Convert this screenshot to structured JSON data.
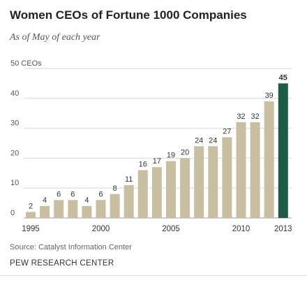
{
  "title": "Women CEOs of Fortune 1000 Companies",
  "subtitle": "As of May of each year",
  "source": "Source: Catalyst Information Center",
  "brand": "PEW RESEARCH CENTER",
  "colors": {
    "bar": "#c8bea1",
    "highlight": "#1e5a46",
    "grid": "#d9d9d9",
    "text": "#333333"
  },
  "chart_data": {
    "type": "bar",
    "x": [
      1995,
      1996,
      1997,
      1998,
      1999,
      2000,
      2001,
      2002,
      2003,
      2004,
      2005,
      2006,
      2007,
      2008,
      2009,
      2010,
      2011,
      2012,
      2013
    ],
    "values": [
      2,
      4,
      6,
      6,
      4,
      6,
      8,
      11,
      16,
      17,
      19,
      20,
      24,
      24,
      27,
      32,
      32,
      39,
      45
    ],
    "x_tick_labels": [
      "1995",
      "2000",
      "2005",
      "2010",
      "2013"
    ],
    "y_ticks": [
      "0",
      "10",
      "20",
      "30",
      "40",
      "50 CEOs"
    ],
    "ylim": [
      0,
      50
    ],
    "highlight": 2013,
    "title": "Women CEOs of Fortune 1000 Companies",
    "xlabel": "",
    "ylabel": "",
    "grid": true
  }
}
